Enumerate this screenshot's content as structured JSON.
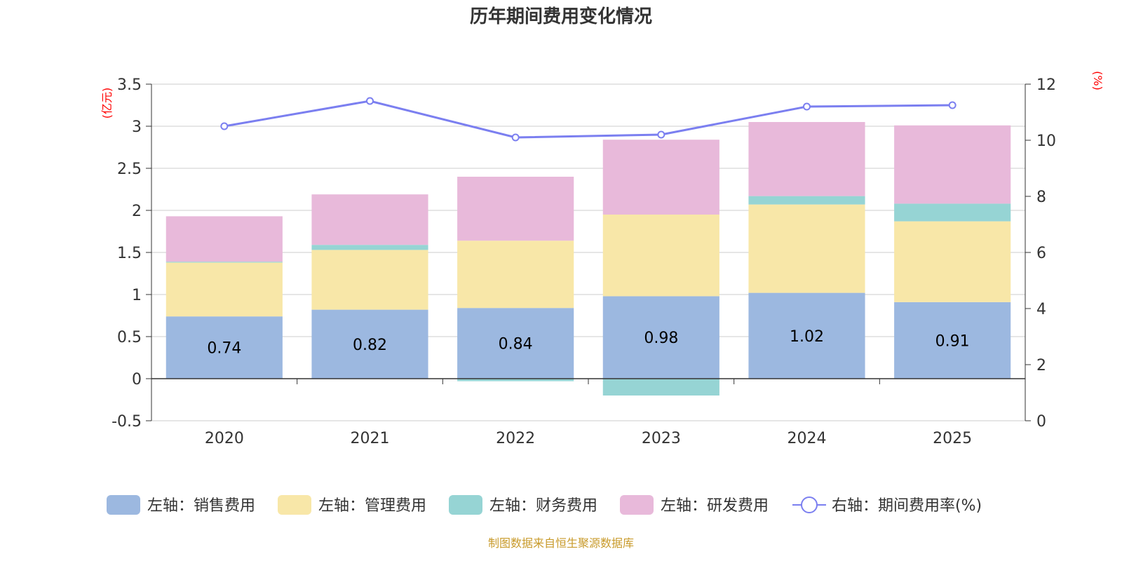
{
  "chart_data": {
    "type": "bar",
    "stacked": true,
    "title": "历年期间费用变化情况",
    "categories": [
      "2020",
      "2021",
      "2022",
      "2023",
      "2024",
      "2025"
    ],
    "left_axis": {
      "unit_label": "(亿元)",
      "ylim": [
        -0.5,
        3.5
      ],
      "ticks": [
        -0.5,
        0,
        0.5,
        1,
        1.5,
        2,
        2.5,
        3,
        3.5
      ],
      "tick_labels": [
        "-0.5",
        "0",
        "0.5",
        "1",
        "1.5",
        "2",
        "2.5",
        "3",
        "3.5"
      ]
    },
    "right_axis": {
      "unit_label": "(%)",
      "ylim": [
        0,
        12
      ],
      "ticks": [
        0,
        2,
        4,
        6,
        8,
        10,
        12
      ],
      "tick_labels": [
        "0",
        "2",
        "4",
        "6",
        "8",
        "10",
        "12"
      ]
    },
    "series": [
      {
        "name": "左轴：销售费用",
        "axis": "left",
        "type": "bar",
        "color": "#9cb8e0",
        "values": [
          0.74,
          0.82,
          0.84,
          0.98,
          1.02,
          0.91
        ],
        "data_labels": [
          "0.74",
          "0.82",
          "0.84",
          "0.98",
          "1.02",
          "0.91"
        ]
      },
      {
        "name": "左轴：管理费用",
        "axis": "left",
        "type": "bar",
        "color": "#f8e7a8",
        "values": [
          0.64,
          0.71,
          0.8,
          0.97,
          1.05,
          0.96
        ]
      },
      {
        "name": "左轴：财务费用",
        "axis": "left",
        "type": "bar",
        "color": "#96d4d4",
        "values": [
          0.01,
          0.06,
          -0.03,
          -0.2,
          0.1,
          0.21
        ]
      },
      {
        "name": "左轴：研发费用",
        "axis": "left",
        "type": "bar",
        "color": "#e8b9da",
        "values": [
          0.54,
          0.6,
          0.76,
          0.89,
          0.88,
          0.93
        ]
      },
      {
        "name": "右轴：期间费用率(%)",
        "axis": "right",
        "type": "line",
        "color": "#7b7ff0",
        "values": [
          10.5,
          11.4,
          10.1,
          10.2,
          11.2,
          11.25
        ]
      }
    ],
    "legend_position": "bottom",
    "grid": true
  },
  "source_note": "制图数据来自恒生聚源数据库",
  "colors": {
    "title": "#333333",
    "axis_unit": "#ff0000",
    "grid": "#cccccc",
    "source_note": "#c89a2a",
    "data_label": "#000000"
  }
}
